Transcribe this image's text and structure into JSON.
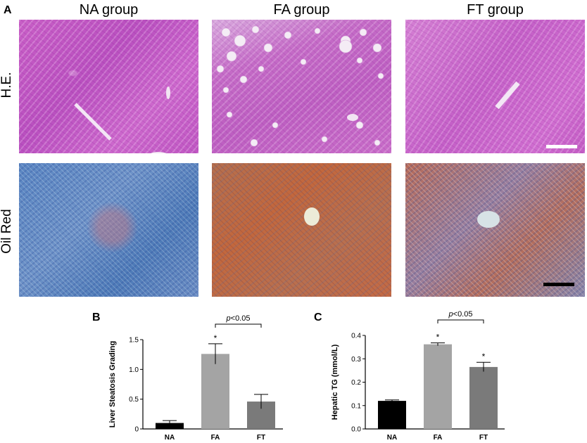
{
  "panel_a": {
    "letter": "A",
    "columns": [
      "NA group",
      "FA group",
      "FT group"
    ],
    "rows": [
      "H.E.",
      "Oil Red"
    ]
  },
  "chart_data": [
    {
      "panel": "B",
      "type": "bar",
      "categories": [
        "NA",
        "FA",
        "FT"
      ],
      "values": [
        0.1,
        1.26,
        0.46
      ],
      "errors": [
        0.04,
        0.17,
        0.12
      ],
      "colors": [
        "#000000",
        "#a4a4a4",
        "#7a7a7a"
      ],
      "significance_marks": [
        "",
        "*",
        ""
      ],
      "bracket": {
        "from": "FA",
        "to": "FT",
        "label_italic": "p",
        "label_rest": "<0.05"
      },
      "ylabel": "Liver Steatosis Grading",
      "ylim": [
        0,
        1.5
      ],
      "yticks": [
        0,
        0.5,
        1.0,
        1.5
      ],
      "ytick_labels": [
        "0",
        "0.5",
        "1.0",
        "1.5"
      ]
    },
    {
      "panel": "C",
      "type": "bar",
      "categories": [
        "NA",
        "FA",
        "FT"
      ],
      "values": [
        0.12,
        0.362,
        0.265
      ],
      "errors": [
        0.004,
        0.006,
        0.02
      ],
      "colors": [
        "#000000",
        "#a4a4a4",
        "#7a7a7a"
      ],
      "significance_marks": [
        "",
        "*",
        "*"
      ],
      "bracket": {
        "from": "FA",
        "to": "FT",
        "label_italic": "p",
        "label_rest": "<0.05"
      },
      "ylabel": "Hepatic TG (mmol/L)",
      "ylim": [
        0,
        0.4
      ],
      "yticks": [
        0,
        0.1,
        0.2,
        0.3,
        0.4
      ],
      "ytick_labels": [
        "0.0",
        "0.1",
        "0.2",
        "0.3",
        "0.4"
      ]
    }
  ]
}
